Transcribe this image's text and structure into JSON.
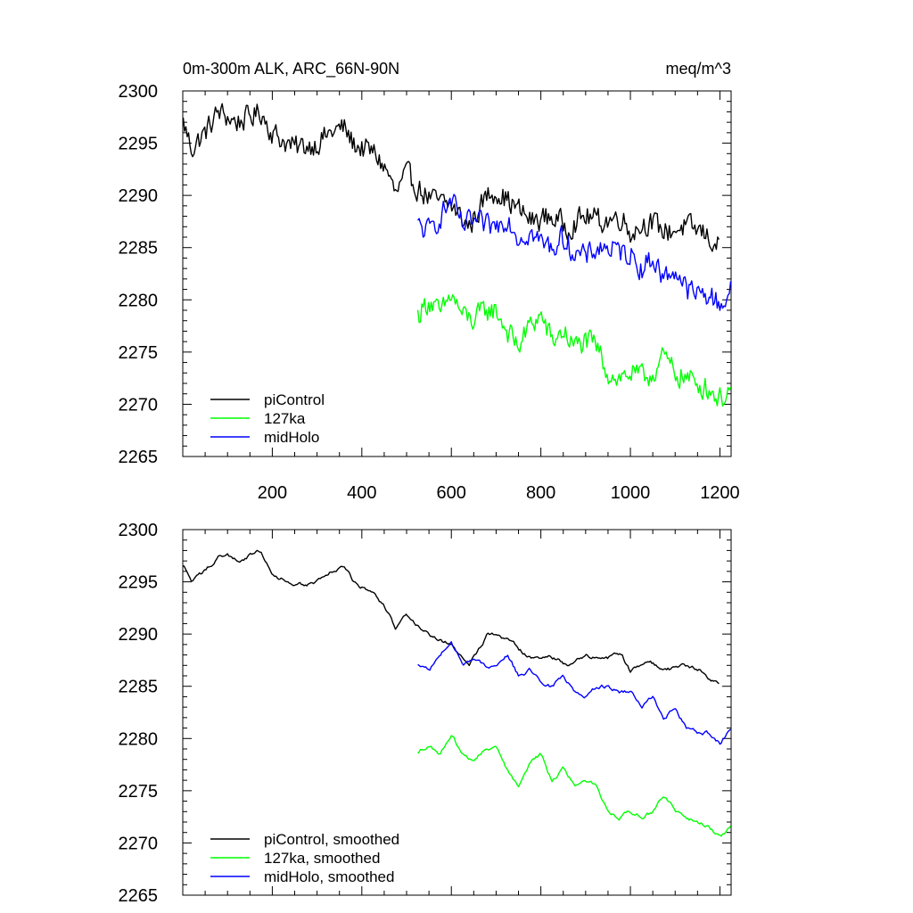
{
  "chart_data": [
    {
      "type": "line",
      "title_left": "0m-300m ALK, ARC_66N-90N",
      "title_right": "meq/m^3",
      "xlim": [
        0,
        1225
      ],
      "ylim": [
        2265,
        2300
      ],
      "xticks": [
        200,
        400,
        600,
        800,
        1000,
        1200
      ],
      "xtick_labels_shown": true,
      "yticks": [
        2265,
        2270,
        2275,
        2280,
        2285,
        2290,
        2295,
        2300
      ],
      "grid": false,
      "legend_position": "bottom-left",
      "series": [
        {
          "name": "piControl",
          "color": "#000000",
          "x_start": 1,
          "x_end": 1200,
          "x": [
            1,
            20,
            50,
            80,
            100,
            120,
            150,
            175,
            200,
            250,
            300,
            330,
            360,
            380,
            400,
            430,
            460,
            475,
            500,
            530,
            560,
            600,
            640,
            680,
            700,
            740,
            780,
            820,
            860,
            900,
            940,
            980,
            1000,
            1040,
            1080,
            1120,
            1160,
            1200
          ],
          "y": [
            2297,
            2294.5,
            2296,
            2298,
            2297.5,
            2297,
            2297.5,
            2298,
            2296,
            2294.5,
            2295,
            2296,
            2296.5,
            2295,
            2294.5,
            2294,
            2292,
            2290,
            2292,
            2290.5,
            2289.5,
            2289,
            2287,
            2290,
            2290.5,
            2289,
            2287.5,
            2288,
            2287,
            2288,
            2287.5,
            2288,
            2286.5,
            2287.5,
            2286.5,
            2287,
            2286.5,
            2285
          ]
        },
        {
          "name": "127ka",
          "color": "#00ff00",
          "x_start": 525,
          "x_end": 1225,
          "x": [
            525,
            550,
            575,
            600,
            625,
            650,
            675,
            700,
            725,
            750,
            775,
            800,
            825,
            850,
            875,
            900,
            925,
            950,
            975,
            1000,
            1025,
            1050,
            1075,
            1100,
            1125,
            1150,
            1175,
            1200,
            1225
          ],
          "y": [
            2278.5,
            2280,
            2278.5,
            2280.5,
            2278.5,
            2278,
            2279,
            2279,
            2277,
            2275.5,
            2277.5,
            2278.5,
            2276,
            2277,
            2275.5,
            2276,
            2275.5,
            2273,
            2272.5,
            2273,
            2272.5,
            2273,
            2274.5,
            2273,
            2272.5,
            2272,
            2271.5,
            2270.5,
            2271.5
          ]
        },
        {
          "name": "midHolo",
          "color": "#0000ff",
          "x_start": 525,
          "x_end": 1225,
          "x": [
            525,
            550,
            575,
            600,
            625,
            650,
            675,
            700,
            725,
            750,
            775,
            800,
            825,
            850,
            875,
            900,
            925,
            950,
            975,
            1000,
            1025,
            1050,
            1075,
            1100,
            1125,
            1150,
            1175,
            1200,
            1225
          ],
          "y": [
            2287,
            2286.5,
            2288,
            2289.5,
            2287,
            2287.5,
            2287,
            2287,
            2288,
            2286,
            2286.5,
            2285.5,
            2285,
            2286,
            2284.5,
            2284,
            2285,
            2285,
            2284.5,
            2284.5,
            2283,
            2284,
            2282,
            2283,
            2281,
            2280.5,
            2280.5,
            2279.5,
            2281
          ]
        }
      ]
    },
    {
      "type": "line",
      "xlim": [
        0,
        1225
      ],
      "ylim": [
        2265,
        2300
      ],
      "xticks": [
        200,
        400,
        600,
        800,
        1000,
        1200
      ],
      "xtick_labels_shown": false,
      "yticks": [
        2265,
        2270,
        2275,
        2280,
        2285,
        2290,
        2295,
        2300
      ],
      "grid": false,
      "legend_position": "bottom-left",
      "series": [
        {
          "name": "piControl, smoothed",
          "color": "#000000",
          "x_start": 1,
          "x_end": 1200,
          "x": [
            1,
            20,
            50,
            80,
            100,
            120,
            150,
            175,
            200,
            250,
            300,
            330,
            360,
            380,
            400,
            430,
            460,
            475,
            500,
            530,
            560,
            600,
            640,
            680,
            700,
            740,
            780,
            820,
            860,
            900,
            940,
            980,
            1000,
            1040,
            1080,
            1120,
            1160,
            1200
          ],
          "y": [
            2296.5,
            2295,
            2296,
            2297.5,
            2297.5,
            2297,
            2297.5,
            2298,
            2296,
            2294.5,
            2295,
            2296,
            2296.5,
            2295,
            2294.5,
            2294,
            2292,
            2290.5,
            2292,
            2290.5,
            2289.5,
            2289,
            2287,
            2290,
            2290,
            2289,
            2287.5,
            2288,
            2287,
            2288,
            2287.5,
            2288,
            2286.5,
            2287.5,
            2286.5,
            2287,
            2286.5,
            2285
          ]
        },
        {
          "name": "127ka, smoothed",
          "color": "#00ff00",
          "x_start": 525,
          "x_end": 1225,
          "x": [
            525,
            550,
            575,
            600,
            625,
            650,
            675,
            700,
            725,
            750,
            775,
            800,
            825,
            850,
            875,
            900,
            925,
            950,
            975,
            1000,
            1025,
            1050,
            1075,
            1100,
            1125,
            1150,
            1175,
            1200,
            1225
          ],
          "y": [
            2278.5,
            2279.5,
            2278.5,
            2280.5,
            2278.5,
            2278,
            2279,
            2279,
            2277,
            2275.5,
            2277.5,
            2278.5,
            2276,
            2277,
            2275.5,
            2276,
            2275.5,
            2273,
            2272.5,
            2273,
            2272.5,
            2273,
            2274.5,
            2273,
            2272.5,
            2272,
            2271.5,
            2270.5,
            2271.5
          ]
        },
        {
          "name": "midHolo, smoothed",
          "color": "#0000ff",
          "x_start": 525,
          "x_end": 1225,
          "x": [
            525,
            550,
            575,
            600,
            625,
            650,
            675,
            700,
            725,
            750,
            775,
            800,
            825,
            850,
            875,
            900,
            925,
            950,
            975,
            1000,
            1025,
            1050,
            1075,
            1100,
            1125,
            1150,
            1175,
            1200,
            1225
          ],
          "y": [
            2287,
            2286.5,
            2288,
            2289.5,
            2287,
            2287.5,
            2287,
            2287,
            2288,
            2286,
            2286.5,
            2285.5,
            2285,
            2286,
            2284.5,
            2284,
            2285,
            2285,
            2284.5,
            2284.5,
            2283,
            2284,
            2282,
            2283,
            2281,
            2280.5,
            2280.5,
            2279.5,
            2281
          ]
        }
      ]
    }
  ]
}
